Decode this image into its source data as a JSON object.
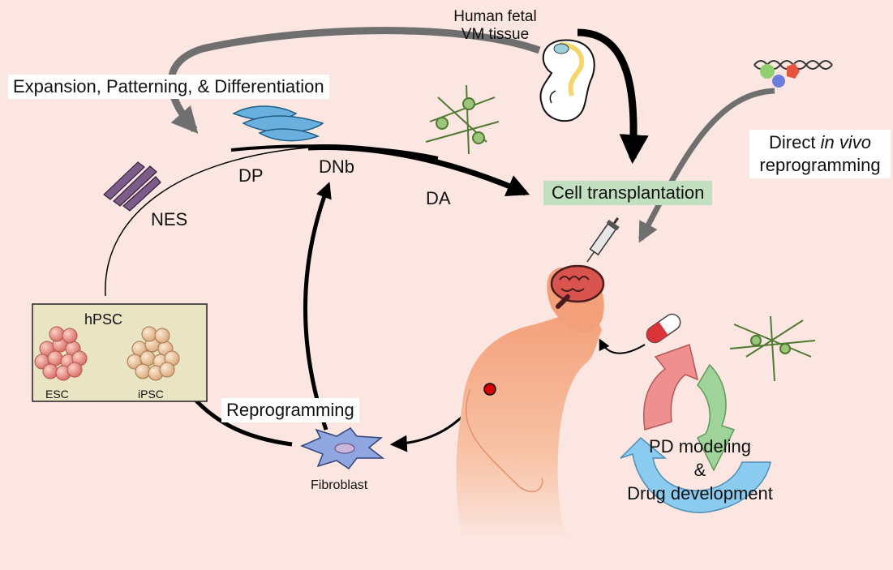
{
  "labels": {
    "human_fetal_line1": "Human fetal",
    "human_fetal_line2": "VM tissue",
    "expansion": "Expansion, Patterning, & Differentiation",
    "dp": "DP",
    "dnb": "DNb",
    "da": "DA",
    "nes": "NES",
    "cell_transplantation": "Cell transplantation",
    "direct_word": "Direct",
    "in_vivo": "in vivo",
    "reprogramming_line2": "reprogramming",
    "hpsc": "hPSC",
    "esc": "ESC",
    "ipsc": "iPSC",
    "reprogramming": "Reprogramming",
    "fibroblast": "Fibroblast",
    "pd_modeling": "PD modeling",
    "ampersand": "&",
    "drug_development": "Drug development"
  },
  "colors": {
    "background": "#fbe6e1",
    "hpsc_box": "#e8e4c4",
    "transplant_box": "#c2dfc0",
    "gray_arrow": "#6f6f6f",
    "body_skin": "#f5a67c",
    "brain": "#d9534f",
    "np_cells": "#6ab0de",
    "nes_cells": "#7d5c8a",
    "neurons": "#9cc47a",
    "cycle_red": "#f08f8f",
    "cycle_green": "#9fd39a",
    "cycle_blue": "#8ccbf0"
  }
}
